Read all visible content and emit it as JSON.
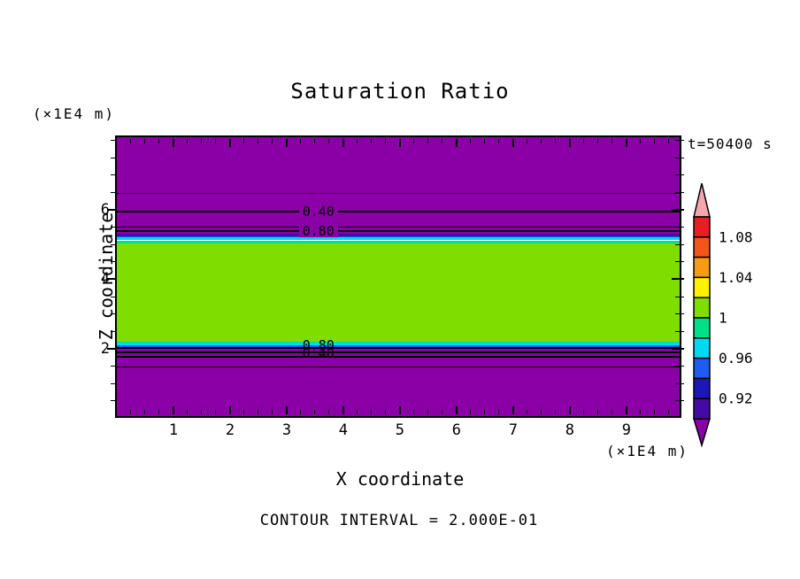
{
  "title": "Saturation Ratio",
  "annotations": {
    "time_label": "t=50400 s",
    "contour_interval": "CONTOUR INTERVAL = 2.000E-01",
    "z_unit_label": "(×1E4 m)",
    "x_unit_label": "(×1E4 m)"
  },
  "palette": {
    "background": "#FFFFFF",
    "line": "#000000",
    "purple": "#8A00A6",
    "indigo": "#4609A4",
    "navy": "#1D17B8",
    "blue": "#1F5DF2",
    "cyan": "#00D9F2",
    "spring_green": "#00E187",
    "yellow_green": "#7FDD00",
    "yellow": "#FFF200",
    "orange": "#F79B15",
    "orange_red": "#F3551A",
    "red": "#EC1C24",
    "pink": "#F4A6AD"
  },
  "chart_data": {
    "type": "heatmap",
    "subtype": "filled-contour",
    "title": "Saturation Ratio",
    "xlabel": "X coordinate",
    "ylabel": "Z coordinate",
    "time": "t=50400 s",
    "contour_interval": 0.2,
    "x_range": [
      0,
      9.94
    ],
    "z_range": [
      0.06,
      8.09
    ],
    "x_ticks": [
      1,
      2,
      3,
      4,
      5,
      6,
      7,
      8,
      9
    ],
    "z_ticks": [
      2,
      4,
      6
    ],
    "x_minor_step": 0.25,
    "z_minor_step": 0.5,
    "grid": false,
    "field_summary": "Saturation ratio ~1.0 inside horizontal band Z=2.0-5.0 (x1E4 m), <0.90 outside; thin transition strips 0.90-1.00 at band edges",
    "bands": [
      {
        "color": "purple",
        "z_top": 8.09,
        "z_bottom": 5.31,
        "value_range": "< 0.90"
      },
      {
        "color": "indigo",
        "z_top": 5.31,
        "z_bottom": 5.27,
        "value_range": "0.90-0.92"
      },
      {
        "color": "navy",
        "z_top": 5.27,
        "z_bottom": 5.24,
        "value_range": "0.92-0.94"
      },
      {
        "color": "blue",
        "z_top": 5.24,
        "z_bottom": 5.2,
        "value_range": "0.94-0.96"
      },
      {
        "color": "cyan",
        "z_top": 5.2,
        "z_bottom": 5.12,
        "value_range": "0.96-0.98"
      },
      {
        "color": "spring_green",
        "z_top": 5.12,
        "z_bottom": 5.04,
        "value_range": "0.98-1.00"
      },
      {
        "color": "yellow_green",
        "z_top": 5.04,
        "z_bottom": 2.2,
        "value_range": "1.00-1.02"
      },
      {
        "color": "spring_green",
        "z_top": 2.2,
        "z_bottom": 2.17,
        "value_range": "0.98-1.00"
      },
      {
        "color": "cyan",
        "z_top": 2.17,
        "z_bottom": 2.1,
        "value_range": "0.96-0.98"
      },
      {
        "color": "blue",
        "z_top": 2.1,
        "z_bottom": 2.05,
        "value_range": "0.94-0.96"
      },
      {
        "color": "navy",
        "z_top": 2.05,
        "z_bottom": 2.03,
        "value_range": "0.92-0.94"
      },
      {
        "color": "indigo",
        "z_top": 2.03,
        "z_bottom": 2.0,
        "value_range": "0.90-0.92"
      },
      {
        "color": "purple",
        "z_top": 2.0,
        "z_bottom": 0.06,
        "value_range": "< 0.90"
      }
    ],
    "contour_lines": [
      {
        "value": 0.2,
        "z": 6.47,
        "weight": "thin"
      },
      {
        "value": 0.4,
        "z": 5.94,
        "weight": "thick"
      },
      {
        "value": 0.6,
        "z": 5.49,
        "weight": "thin"
      },
      {
        "value": 0.8,
        "z": 5.4,
        "weight": "thick"
      },
      {
        "value": 0.8,
        "z": 2.03,
        "weight": "thick"
      },
      {
        "value": 0.6,
        "z": 1.9,
        "weight": "thick"
      },
      {
        "value": 0.4,
        "z": 1.77,
        "weight": "thick"
      },
      {
        "value": 0.2,
        "z": 1.48,
        "weight": "thin"
      }
    ],
    "contour_labels": [
      {
        "text": "0.40",
        "x": 3.56,
        "z": 5.94,
        "opaque": true
      },
      {
        "text": "0.80",
        "x": 3.56,
        "z": 5.38,
        "opaque": true
      },
      {
        "text": "0.80",
        "x": 3.56,
        "z": 2.1,
        "opaque": false
      },
      {
        "text": "0.40",
        "x": 3.56,
        "z": 1.86,
        "opaque": false
      }
    ],
    "colorbar": {
      "orientation": "vertical",
      "over_color": "pink",
      "under_color": "purple",
      "segments": [
        {
          "color": "red",
          "range": [
            1.08,
            1.1
          ]
        },
        {
          "color": "orange_red",
          "range": [
            1.06,
            1.08
          ]
        },
        {
          "color": "orange",
          "range": [
            1.04,
            1.06
          ]
        },
        {
          "color": "yellow",
          "range": [
            1.02,
            1.04
          ]
        },
        {
          "color": "yellow_green",
          "range": [
            1.0,
            1.02
          ]
        },
        {
          "color": "spring_green",
          "range": [
            0.98,
            1.0
          ]
        },
        {
          "color": "cyan",
          "range": [
            0.96,
            0.98
          ]
        },
        {
          "color": "blue",
          "range": [
            0.94,
            0.96
          ]
        },
        {
          "color": "navy",
          "range": [
            0.92,
            0.94
          ]
        },
        {
          "color": "indigo",
          "range": [
            0.9,
            0.92
          ]
        }
      ],
      "labels": [
        {
          "text": "1.08",
          "boundary": 1
        },
        {
          "text": "1.04",
          "boundary": 3
        },
        {
          "text": "1",
          "boundary": 5
        },
        {
          "text": "0.96",
          "boundary": 7
        },
        {
          "text": "0.92",
          "boundary": 9
        }
      ]
    }
  }
}
